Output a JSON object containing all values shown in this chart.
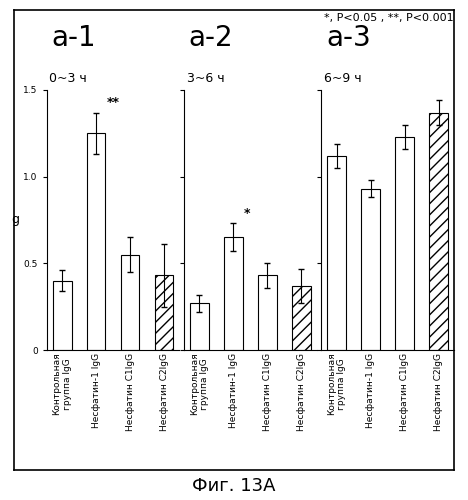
{
  "subplots": [
    {
      "title": "a-1",
      "subtitle": "0~3 ч",
      "bars": [
        0.4,
        1.25,
        0.55,
        0.43
      ],
      "errors": [
        0.06,
        0.12,
        0.1,
        0.18
      ],
      "hatches": [
        "",
        "",
        "",
        "///"
      ],
      "significance": [
        "",
        "**",
        "",
        ""
      ],
      "sig_bar_idx": 1
    },
    {
      "title": "a-2",
      "subtitle": "3~6 ч",
      "bars": [
        0.27,
        0.65,
        0.43,
        0.37
      ],
      "errors": [
        0.05,
        0.08,
        0.07,
        0.1
      ],
      "hatches": [
        "",
        "",
        "",
        "///"
      ],
      "significance": [
        "",
        "*",
        "",
        ""
      ],
      "sig_bar_idx": 1
    },
    {
      "title": "a-3",
      "subtitle": "6~9 ч",
      "bars": [
        1.12,
        0.93,
        1.23,
        1.37
      ],
      "errors": [
        0.07,
        0.05,
        0.07,
        0.07
      ],
      "hatches": [
        "",
        "",
        "",
        "///"
      ],
      "significance": [
        "",
        "",
        "",
        ""
      ],
      "sig_bar_idx": -1
    }
  ],
  "ylim": [
    0,
    1.5
  ],
  "yticks": [
    0,
    0.5,
    1.0,
    1.5
  ],
  "ytick_labels": [
    "0",
    "0.5",
    "1.0",
    "1.5"
  ],
  "ylabel": "g",
  "bar_labels": [
    "Контрольная\nгруппа IgG",
    "Несфатин-1 IgG",
    "Несфатин C1IgG",
    "Несфатин C2IgG"
  ],
  "annotation": "*, P<0.05 , **, P<0.001",
  "figure_label": "Фиг. 13A",
  "bar_width": 0.55,
  "bar_color": "white",
  "bar_edgecolor": "black",
  "background_color": "white",
  "title_fontsize": 20,
  "subtitle_fontsize": 9,
  "tick_fontsize": 6.5,
  "ylabel_fontsize": 9,
  "annot_fontsize": 8,
  "figlabel_fontsize": 13
}
